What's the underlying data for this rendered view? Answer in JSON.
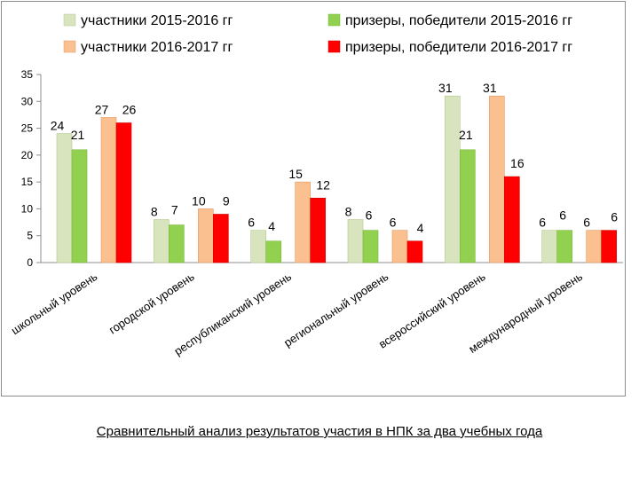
{
  "chart_data": {
    "type": "bar",
    "title": "",
    "categories": [
      "школьный уровень",
      "городской уровень",
      "республиканский уровень",
      "региональный уровень",
      "всероссийский  уровень",
      "международный уровень"
    ],
    "series": [
      {
        "name": "участники 2015-2016 гг",
        "color": "#d7e4bd",
        "stroke": "#b3c98a",
        "values": [
          24,
          8,
          6,
          8,
          31,
          6
        ]
      },
      {
        "name": "призеры, победители 2015-2016 гг",
        "color": "#92d050",
        "stroke": "#78b83a",
        "values": [
          21,
          7,
          4,
          6,
          21,
          6
        ]
      },
      {
        "name": "участники 2016-2017 гг",
        "color": "#fac090",
        "stroke": "#e39a62",
        "values": [
          27,
          10,
          15,
          6,
          31,
          6
        ]
      },
      {
        "name": "призеры, победители 2016-2017 гг",
        "color": "#ff0000",
        "stroke": "#d00000",
        "values": [
          26,
          9,
          12,
          4,
          16,
          6
        ]
      }
    ],
    "ylim": [
      0,
      35
    ],
    "yticks": [
      0,
      5,
      10,
      15,
      20,
      25,
      30,
      35
    ],
    "grid": false,
    "legend_position": "top",
    "xlabel": "",
    "ylabel": ""
  },
  "caption": "Сравнительный анализ результатов участия в НПК  за два учебных года"
}
